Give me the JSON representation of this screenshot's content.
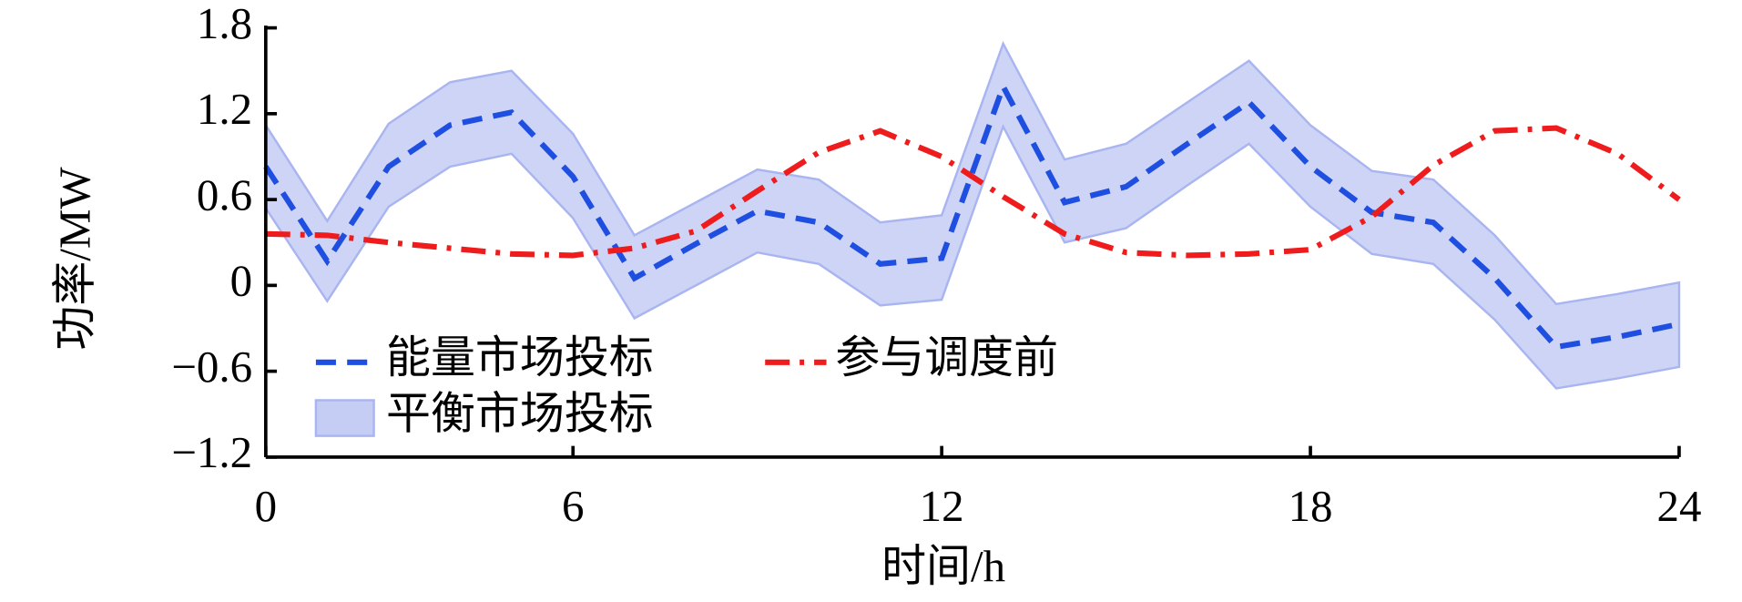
{
  "chart_data": {
    "type": "line",
    "xlabel": "时间/h",
    "ylabel": "功率/MW",
    "categories": [
      "0",
      null,
      null,
      null,
      null,
      "6",
      null,
      null,
      null,
      null,
      null,
      "12",
      null,
      null,
      null,
      null,
      null,
      "18",
      null,
      null,
      null,
      null,
      null,
      "24"
    ],
    "ylim": [
      -1.2,
      1.8
    ],
    "yticks": [
      {
        "value": -1.2,
        "label": "−1.2"
      },
      {
        "value": -0.6,
        "label": "−0.6"
      },
      0,
      0.6,
      1.2,
      1.8
    ],
    "legend": "lower left",
    "series": [
      {
        "name": "能量市场投标",
        "color": "#1f4fe0",
        "style": "dashed",
        "values": [
          0.83,
          0.17,
          0.83,
          1.12,
          1.21,
          0.76,
          0.05,
          0.29,
          0.52,
          0.44,
          0.15,
          0.19,
          1.39,
          0.58,
          0.69,
          0.99,
          1.28,
          0.83,
          0.51,
          0.44,
          0.05,
          -0.43,
          -0.36,
          -0.27
        ]
      },
      {
        "name": "平衡市场投标",
        "color": "#c5cdf5",
        "style": "band",
        "upper": [
          1.12,
          0.45,
          1.13,
          1.42,
          1.5,
          1.06,
          0.35,
          0.58,
          0.81,
          0.74,
          0.44,
          0.49,
          1.69,
          0.88,
          0.99,
          1.28,
          1.57,
          1.12,
          0.8,
          0.74,
          0.35,
          -0.13,
          -0.06,
          0.02
        ],
        "lower": [
          0.54,
          -0.11,
          0.55,
          0.83,
          0.92,
          0.47,
          -0.23,
          0.0,
          0.23,
          0.15,
          -0.14,
          -0.1,
          1.11,
          0.3,
          0.4,
          0.7,
          0.99,
          0.55,
          0.22,
          0.15,
          -0.24,
          -0.72,
          -0.65,
          -0.57
        ]
      },
      {
        "name": "参与调度前",
        "color": "#ee1c1c",
        "style": "dashdot",
        "values": [
          0.36,
          0.35,
          0.3,
          0.26,
          0.22,
          0.21,
          0.26,
          0.38,
          0.66,
          0.93,
          1.08,
          0.9,
          0.62,
          0.36,
          0.23,
          0.21,
          0.22,
          0.25,
          0.48,
          0.84,
          1.08,
          1.1,
          0.92,
          0.6
        ]
      }
    ]
  }
}
